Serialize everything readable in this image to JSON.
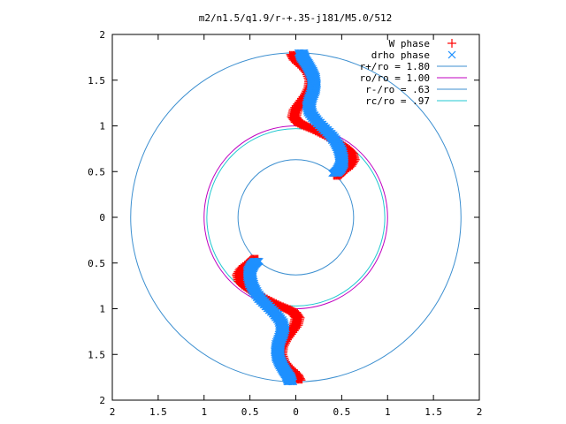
{
  "chart_data": {
    "type": "scatter",
    "title": "m2/n1.5/q1.9/r-+.35-j181/M5.0/512",
    "xlabel": "",
    "ylabel": "",
    "xlim": [
      -2,
      2
    ],
    "ylim": [
      -2,
      2
    ],
    "grid": false,
    "legend_position": "top-right",
    "x_tick_labels": [
      "2",
      "1.5",
      "1",
      "0.5",
      "0",
      "0.5",
      "1",
      "1.5",
      "2"
    ],
    "y_tick_labels": [
      "2",
      "1.5",
      "1",
      "0.5",
      "0",
      "0.5",
      "1",
      "1.5",
      "2"
    ],
    "x_ticks": [
      -2,
      -1.5,
      -1,
      -0.5,
      0,
      0.5,
      1,
      1.5,
      2
    ],
    "y_ticks": [
      2,
      1.5,
      1,
      0.5,
      0,
      -0.5,
      -1,
      -1.5,
      -2
    ],
    "series": [
      {
        "name": "W phase",
        "marker": "+",
        "color": "#ff0000",
        "points": [
          [
            -0.03,
            1.78
          ],
          [
            0.0,
            1.72
          ],
          [
            0.08,
            1.65
          ],
          [
            0.14,
            1.58
          ],
          [
            0.17,
            1.5
          ],
          [
            0.16,
            1.42
          ],
          [
            0.12,
            1.34
          ],
          [
            0.06,
            1.26
          ],
          [
            0.0,
            1.18
          ],
          [
            -0.02,
            1.1
          ],
          [
            0.02,
            1.04
          ],
          [
            0.1,
            1.0
          ],
          [
            0.2,
            0.96
          ],
          [
            0.3,
            0.91
          ],
          [
            0.4,
            0.86
          ],
          [
            0.48,
            0.8
          ],
          [
            0.55,
            0.75
          ],
          [
            0.6,
            0.7
          ],
          [
            0.62,
            0.63
          ],
          [
            0.58,
            0.56
          ],
          [
            0.5,
            0.5
          ],
          [
            0.45,
            0.45
          ],
          [
            0.03,
            -1.78
          ],
          [
            0.0,
            -1.72
          ],
          [
            -0.08,
            -1.65
          ],
          [
            -0.14,
            -1.58
          ],
          [
            -0.17,
            -1.5
          ],
          [
            -0.16,
            -1.42
          ],
          [
            -0.12,
            -1.34
          ],
          [
            -0.06,
            -1.26
          ],
          [
            0.0,
            -1.18
          ],
          [
            0.02,
            -1.1
          ],
          [
            -0.02,
            -1.04
          ],
          [
            -0.1,
            -1.0
          ],
          [
            -0.2,
            -0.96
          ],
          [
            -0.3,
            -0.91
          ],
          [
            -0.4,
            -0.86
          ],
          [
            -0.48,
            -0.8
          ],
          [
            -0.55,
            -0.75
          ],
          [
            -0.6,
            -0.7
          ],
          [
            -0.62,
            -0.63
          ],
          [
            -0.58,
            -0.56
          ],
          [
            -0.5,
            -0.5
          ],
          [
            -0.45,
            -0.45
          ]
        ]
      },
      {
        "name": "drho phase",
        "marker": "x",
        "color": "#1e90ff",
        "points": [
          [
            0.06,
            1.8
          ],
          [
            0.08,
            1.74
          ],
          [
            0.12,
            1.68
          ],
          [
            0.16,
            1.61
          ],
          [
            0.19,
            1.54
          ],
          [
            0.2,
            1.46
          ],
          [
            0.19,
            1.38
          ],
          [
            0.16,
            1.3
          ],
          [
            0.14,
            1.22
          ],
          [
            0.16,
            1.14
          ],
          [
            0.22,
            1.06
          ],
          [
            0.3,
            0.98
          ],
          [
            0.38,
            0.9
          ],
          [
            0.44,
            0.82
          ],
          [
            0.48,
            0.74
          ],
          [
            0.5,
            0.66
          ],
          [
            0.5,
            0.58
          ],
          [
            0.47,
            0.52
          ],
          [
            0.43,
            0.48
          ],
          [
            -0.06,
            -1.8
          ],
          [
            -0.08,
            -1.74
          ],
          [
            -0.12,
            -1.68
          ],
          [
            -0.16,
            -1.61
          ],
          [
            -0.19,
            -1.54
          ],
          [
            -0.2,
            -1.46
          ],
          [
            -0.19,
            -1.38
          ],
          [
            -0.16,
            -1.3
          ],
          [
            -0.14,
            -1.22
          ],
          [
            -0.16,
            -1.14
          ],
          [
            -0.22,
            -1.06
          ],
          [
            -0.3,
            -0.98
          ],
          [
            -0.38,
            -0.9
          ],
          [
            -0.44,
            -0.82
          ],
          [
            -0.48,
            -0.74
          ],
          [
            -0.5,
            -0.66
          ],
          [
            -0.5,
            -0.58
          ],
          [
            -0.47,
            -0.52
          ],
          [
            -0.43,
            -0.48
          ]
        ]
      },
      {
        "name": "r+/ro = 1.80",
        "type": "circle",
        "radius": 1.8,
        "color": "#3c8fd0"
      },
      {
        "name": "ro/ro = 1.00",
        "type": "circle",
        "radius": 1.0,
        "color": "#c000c0"
      },
      {
        "name": "r-/ro = .63",
        "type": "circle",
        "radius": 0.63,
        "color": "#3c8fd0"
      },
      {
        "name": "rc/ro = .97",
        "type": "circle",
        "radius": 0.97,
        "color": "#20c8d0"
      }
    ]
  }
}
